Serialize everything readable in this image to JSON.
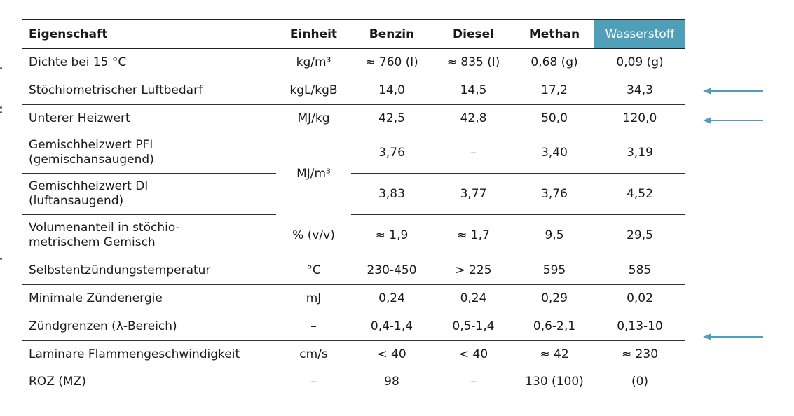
{
  "colors": {
    "highlight": "#4f9fb8",
    "arrow": "#4f9fb8"
  },
  "header": [
    "Eigenschaft",
    "Einheit",
    "Benzin",
    "Diesel",
    "Methan",
    "Wasserstoff"
  ],
  "rows": {
    "dichte": {
      "prop": "Dichte bei 15 °C",
      "unit": "kg/m³",
      "benzin": "≈ 760 (l)",
      "diesel": "≈ 835 (l)",
      "methan": "0,68 (g)",
      "wasserstoff": "0,09 (g)"
    },
    "luftbedarf": {
      "prop": "Stöchiometrischer Luftbedarf",
      "unit": "kgL/kgB",
      "benzin": "14,0",
      "diesel": "14,5",
      "methan": "17,2",
      "wasserstoff": "34,3"
    },
    "heizwert": {
      "prop": "Unterer Heizwert",
      "unit": "MJ/kg",
      "benzin": "42,5",
      "diesel": "42,8",
      "methan": "50,0",
      "wasserstoff": "120,0"
    },
    "gemisch_pfi": {
      "prop_line1": "Gemischheizwert PFI",
      "prop_line2": "(gemischansaugend)",
      "benzin": "3,76",
      "diesel": "–",
      "methan": "3,40",
      "wasserstoff": "3,19"
    },
    "gemisch_unit": "MJ/m³",
    "gemisch_di": {
      "prop_line1": "Gemischheizwert DI",
      "prop_line2": "(luftansaugend)",
      "benzin": "3,83",
      "diesel": "3,77",
      "methan": "3,76",
      "wasserstoff": "4,52"
    },
    "volumenanteil": {
      "prop_line1": "Volumenanteil in stöchio-",
      "prop_line2": "metrischem Gemisch",
      "unit": "% (v/v)",
      "benzin": "≈ 1,9",
      "diesel": "≈ 1,7",
      "methan": "9,5",
      "wasserstoff": "29,5"
    },
    "selbstzuendung": {
      "prop": "Selbstentzündungstemperatur",
      "unit": "°C",
      "benzin": "230-450",
      "diesel": "> 225",
      "methan": "595",
      "wasserstoff": "585"
    },
    "zuendenergie": {
      "prop": "Minimale Zündenergie",
      "unit": "mJ",
      "benzin": "0,24",
      "diesel": "0,24",
      "methan": "0,29",
      "wasserstoff": "0,02"
    },
    "zuendgrenzen": {
      "prop": "Zündgrenzen (λ-Bereich)",
      "unit": "–",
      "benzin": "0,4-1,4",
      "diesel": "0,5-1,4",
      "methan": "0,6-2,1",
      "wasserstoff": "0,13-10"
    },
    "flamme": {
      "prop": "Laminare Flammengeschwindigkeit",
      "unit": "cm/s",
      "benzin": "< 40",
      "diesel": "< 40",
      "methan": "≈ 42",
      "wasserstoff": "≈ 230"
    },
    "roz": {
      "prop": "ROZ (MZ)",
      "unit": "–",
      "benzin": "98",
      "diesel": "–",
      "methan": "130 (100)",
      "wasserstoff": "(0)"
    }
  }
}
